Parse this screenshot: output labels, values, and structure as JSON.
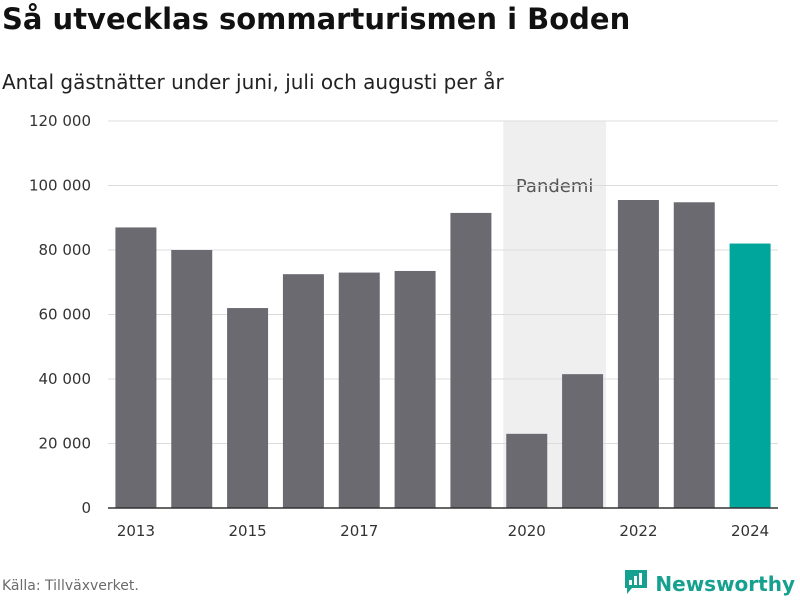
{
  "title": "Så utvecklas sommarturismen i Boden",
  "subtitle": "Antal gästnätter under juni, juli och augusti per år",
  "source": "Källa: Tillväxverket.",
  "brand": {
    "name": "Newsworthy",
    "icon": "newsworthy-logo-icon",
    "color": "#16a08f"
  },
  "colors": {
    "bar": "#6b6a70",
    "highlight": "#00a69c",
    "band": "#efefef",
    "grid": "#dcdcdc"
  },
  "chart_data": {
    "type": "bar",
    "categories": [
      "2013",
      "2014",
      "2015",
      "2016",
      "2017",
      "2018",
      "2019",
      "2020",
      "2021",
      "2022",
      "2023",
      "2024"
    ],
    "values": [
      87000,
      80000,
      62000,
      72500,
      73000,
      73500,
      91500,
      23000,
      41500,
      95500,
      94800,
      82000
    ],
    "highlight_category": "2024",
    "x_tick_labels": [
      "2013",
      "2015",
      "2017",
      "2020",
      "2022",
      "2024"
    ],
    "y_tick_labels": [
      "0",
      "20 000",
      "40 000",
      "60 000",
      "80 000",
      "100 000",
      "120 000"
    ],
    "y_ticks": [
      0,
      20000,
      40000,
      60000,
      80000,
      100000,
      120000
    ],
    "ylim": [
      0,
      120000
    ],
    "grid": true,
    "annotations": [
      {
        "text": "Pandemi",
        "from": "2020",
        "to": "2021"
      }
    ],
    "title": "Så utvecklas sommarturismen i Boden",
    "subtitle": "Antal gästnätter under juni, juli och augusti per år",
    "xlabel": "",
    "ylabel": ""
  }
}
